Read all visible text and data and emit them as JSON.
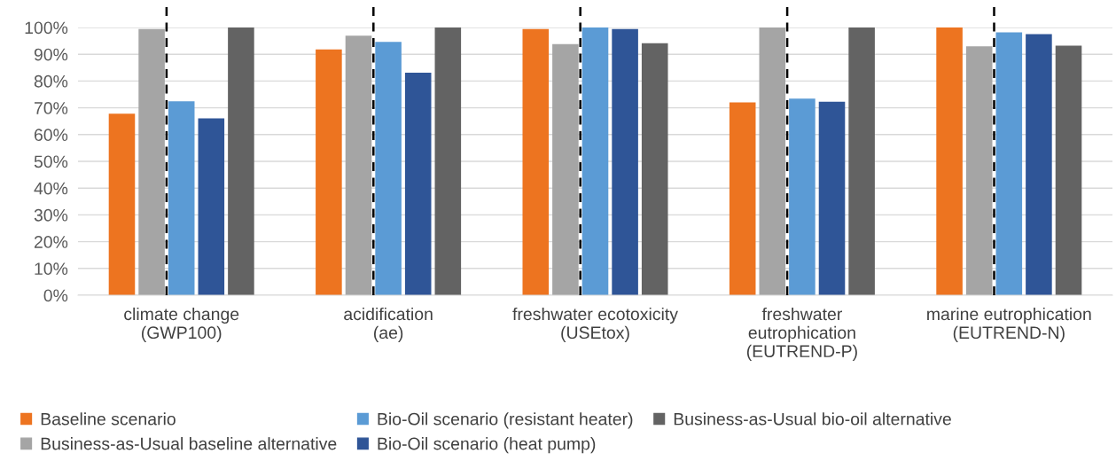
{
  "chart_data": {
    "type": "bar",
    "categories": [
      "climate change\n(GWP100)",
      "acidification\n(ae)",
      "freshwater ecotoxicity\n(USEtox)",
      "freshwater\neutrophication\n(EUTREND-P)",
      "marine eutrophication\n(EUTREND-N)"
    ],
    "series": [
      {
        "name": "Baseline scenario",
        "color": "#ed7420",
        "values": [
          67.8,
          91.8,
          99.4,
          72.0,
          100
        ]
      },
      {
        "name": "Business-as-Usual baseline alternative",
        "color": "#a5a5a5",
        "values": [
          99.4,
          96.9,
          93.8,
          100,
          93.0
        ]
      },
      {
        "name": "Bio-Oil scenario (resistant heater)",
        "color": "#5b9bd5",
        "values": [
          72.4,
          94.6,
          100,
          73.4,
          98.2
        ]
      },
      {
        "name": "Bio-Oil scenario (heat pump)",
        "color": "#2f5597",
        "values": [
          66.1,
          83.1,
          99.4,
          72.3,
          97.5
        ]
      },
      {
        "name": "Business-as-Usual bio-oil alternative",
        "color": "#636363",
        "values": [
          100,
          100,
          94.1,
          100,
          93.2
        ]
      }
    ],
    "ylim": [
      0,
      100
    ],
    "yticks": [
      {
        "value": 0,
        "label": "0%"
      },
      {
        "value": 10,
        "label": "10%"
      },
      {
        "value": 20,
        "label": "20%"
      },
      {
        "value": 30,
        "label": "30%"
      },
      {
        "value": 40,
        "label": "40%"
      },
      {
        "value": 50,
        "label": "50%"
      },
      {
        "value": 60,
        "label": "60%"
      },
      {
        "value": 70,
        "label": "70%"
      },
      {
        "value": 80,
        "label": "80%"
      },
      {
        "value": 90,
        "label": "90%"
      },
      {
        "value": 100,
        "label": "100%"
      }
    ],
    "ref_lines": [
      {
        "axis": "x",
        "value": "climate change\n(GWP100)",
        "color": "#000000",
        "line_style": "dashed"
      },
      {
        "axis": "x",
        "value": "acidification\n(ae)",
        "color": "#000000",
        "line_style": "dashed"
      },
      {
        "axis": "x",
        "value": "freshwater ecotoxicity\n(USEtox)",
        "color": "#000000",
        "line_style": "dashed"
      },
      {
        "axis": "x",
        "value": "freshwater\neutrophication\n(EUTREND-P)",
        "color": "#000000",
        "line_style": "dashed"
      },
      {
        "axis": "x",
        "value": "marine eutrophication\n(EUTREND-N)",
        "color": "#000000",
        "line_style": "dashed"
      }
    ],
    "grid": "y",
    "legend": "bottom"
  }
}
